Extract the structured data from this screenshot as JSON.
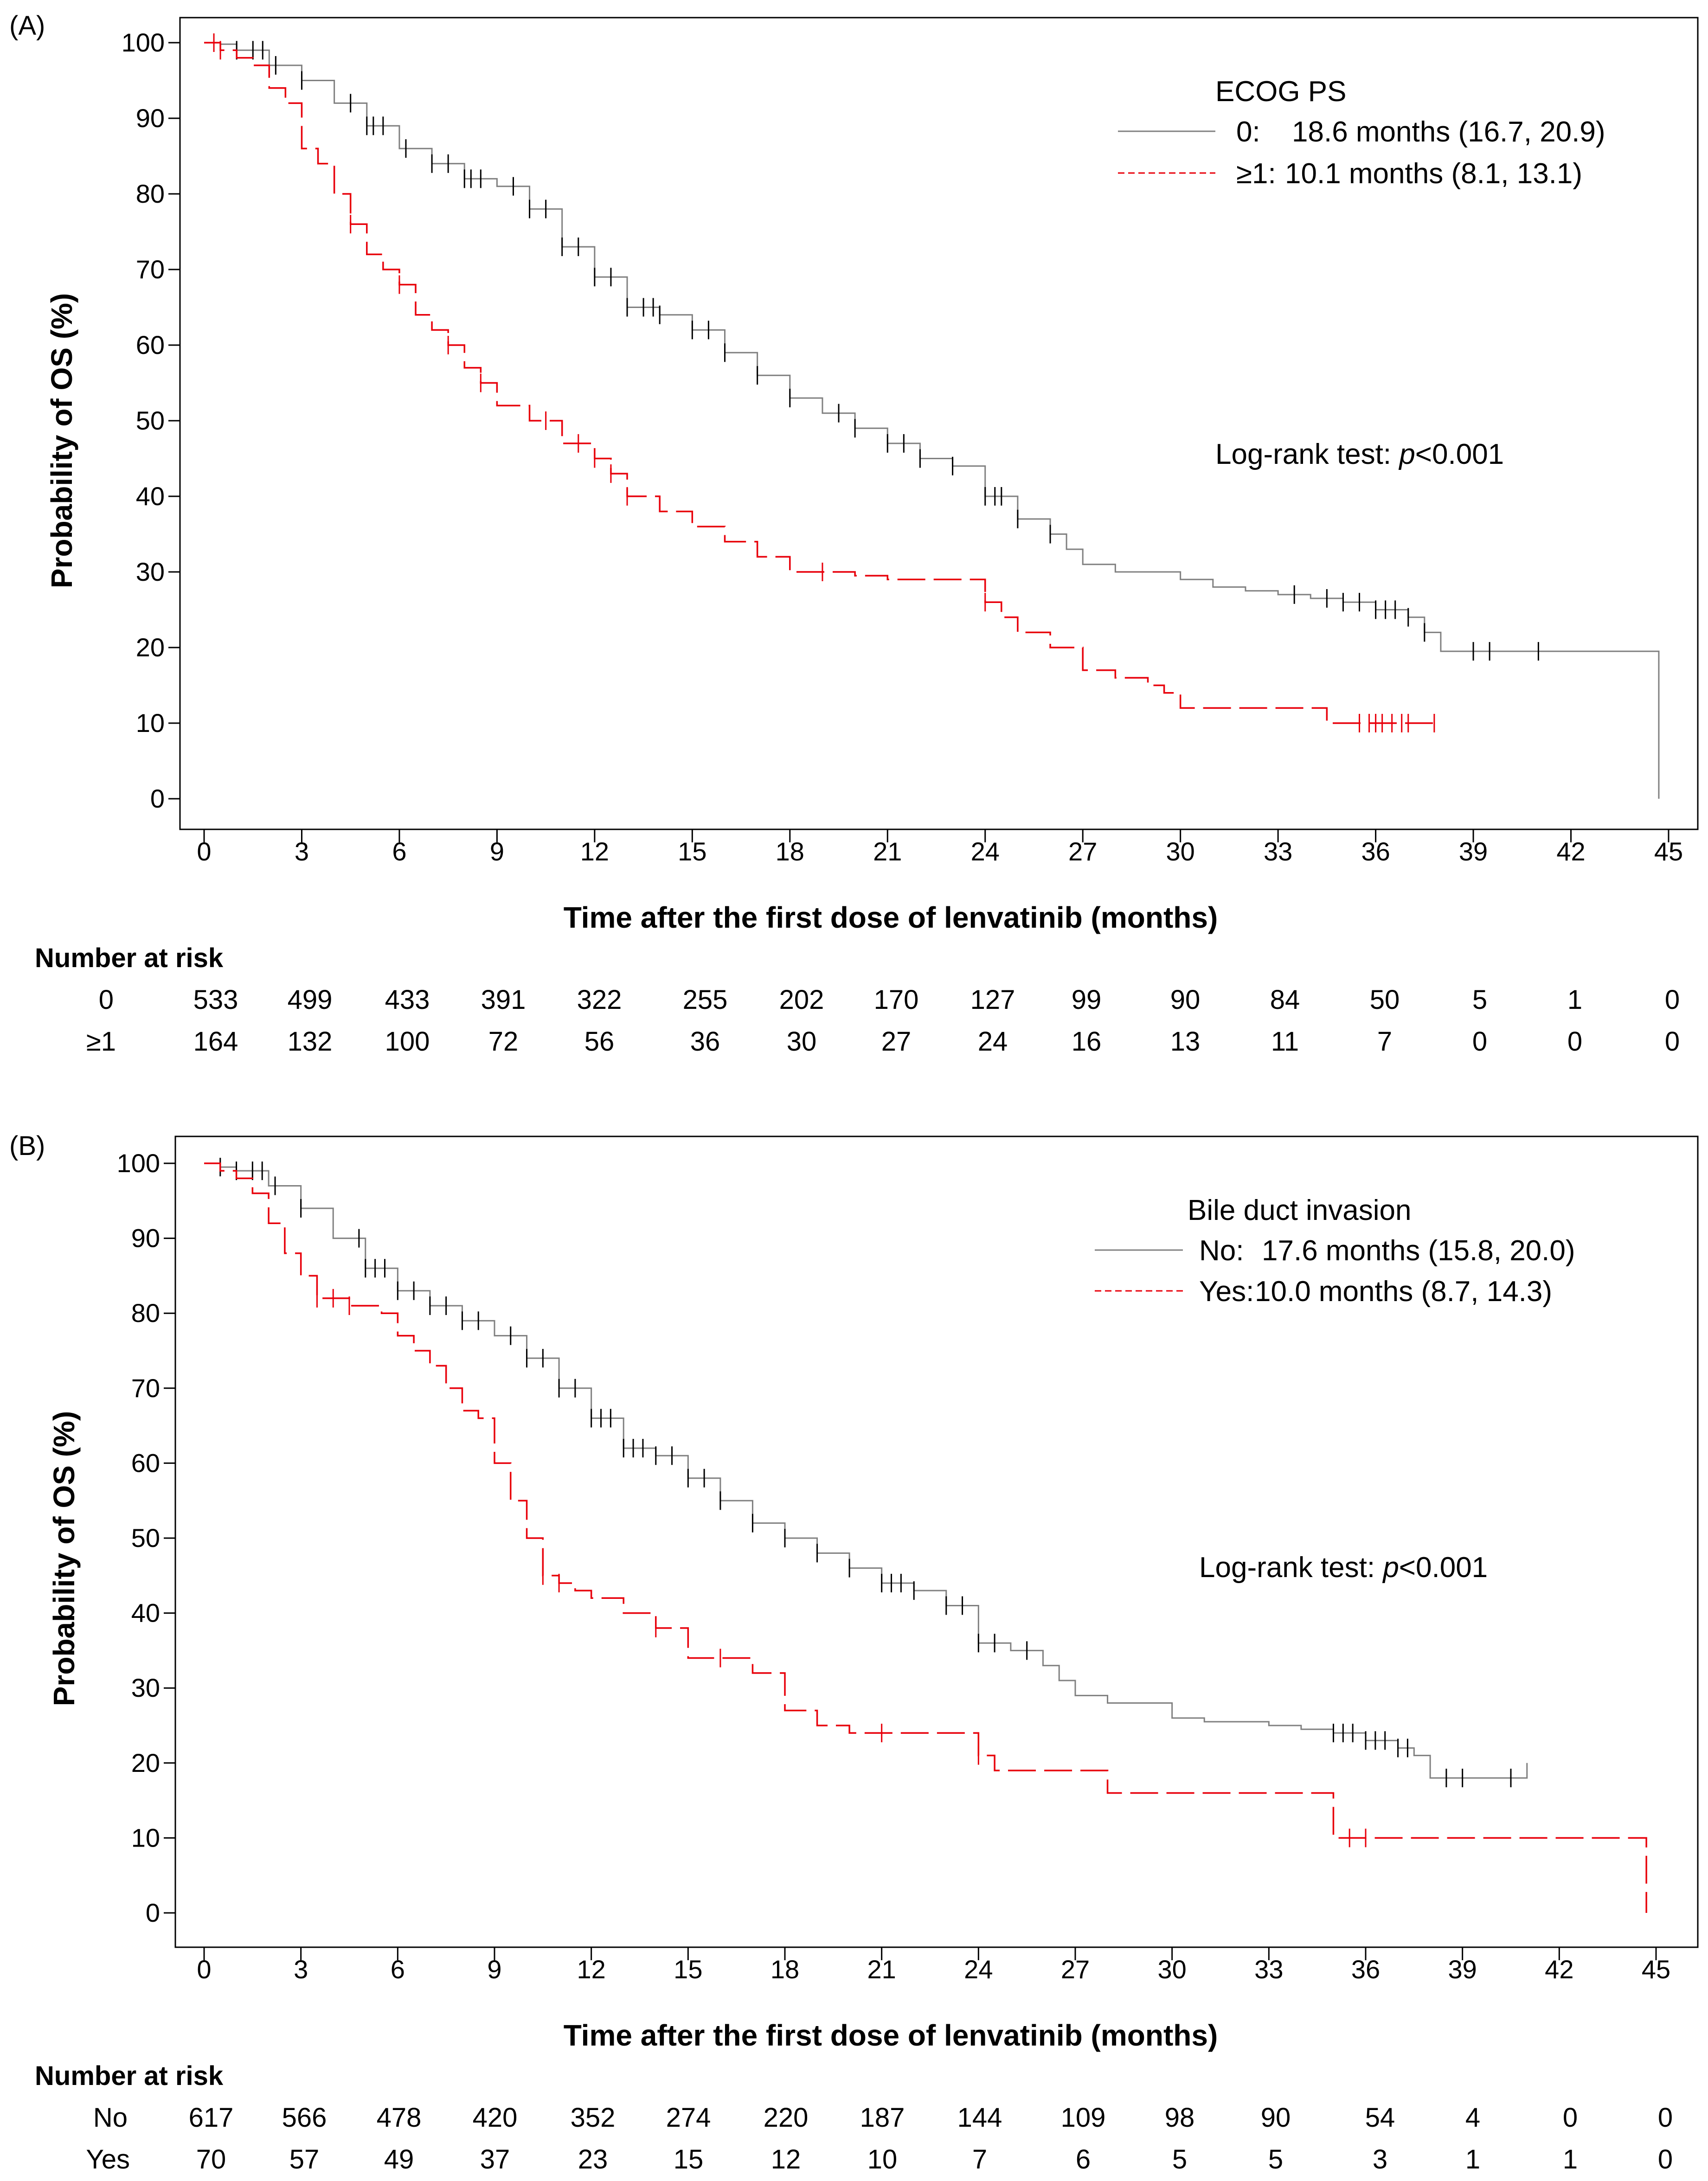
{
  "chart_data": [
    {
      "panel": "(A)",
      "type": "line",
      "subtype": "kaplan-meier",
      "xlabel": "Time after the first dose of lenvatinib (months)",
      "ylabel": "Probability of OS (%)",
      "xlim": [
        0,
        45
      ],
      "ylim": [
        0,
        100
      ],
      "xticks": [
        0,
        3,
        6,
        9,
        12,
        15,
        18,
        21,
        24,
        27,
        30,
        33,
        36,
        39,
        42,
        45
      ],
      "yticks": [
        0,
        10,
        20,
        30,
        40,
        50,
        60,
        70,
        80,
        90,
        100
      ],
      "legend_title": "ECOG PS",
      "legend_position": "top-right",
      "annotation": {
        "prefix": "Log-rank test: ",
        "italic": "p",
        "suffix": "<0.001"
      },
      "series": [
        {
          "name": "0",
          "legend_label": "0:",
          "legend_value": "18.6 months (16.7, 20.9)",
          "color": "#808080",
          "dash": "solid",
          "points": [
            [
              0,
              100
            ],
            [
              0.5,
              99.8
            ],
            [
              1,
              99
            ],
            [
              2,
              97
            ],
            [
              3,
              95
            ],
            [
              4,
              92
            ],
            [
              5,
              89
            ],
            [
              6,
              86
            ],
            [
              7,
              84
            ],
            [
              8,
              82
            ],
            [
              9,
              81
            ],
            [
              10,
              78
            ],
            [
              11,
              73
            ],
            [
              12,
              69
            ],
            [
              13,
              65
            ],
            [
              14,
              64
            ],
            [
              15,
              62
            ],
            [
              16,
              59
            ],
            [
              17,
              56
            ],
            [
              18,
              53
            ],
            [
              19,
              51
            ],
            [
              20,
              49
            ],
            [
              21,
              47
            ],
            [
              22,
              45
            ],
            [
              23,
              44
            ],
            [
              24,
              40
            ],
            [
              25,
              37
            ],
            [
              26,
              35
            ],
            [
              26.5,
              33
            ],
            [
              27,
              31
            ],
            [
              28,
              30
            ],
            [
              29,
              30
            ],
            [
              30,
              29
            ],
            [
              31,
              28
            ],
            [
              32,
              27.5
            ],
            [
              33,
              27
            ],
            [
              34,
              26.5
            ],
            [
              35,
              26
            ],
            [
              36,
              25
            ],
            [
              37,
              24
            ],
            [
              37.5,
              22
            ],
            [
              38,
              19.5
            ],
            [
              44.7,
              19.5
            ],
            [
              44.7,
              0
            ]
          ],
          "censor_times": [
            1,
            1.5,
            1.8,
            2.2,
            3,
            4.5,
            5,
            5.2,
            5.5,
            6.2,
            7,
            7.5,
            8,
            8.2,
            8.5,
            9.5,
            10,
            10.5,
            11,
            11.5,
            12,
            12.5,
            13,
            13.5,
            13.8,
            14,
            15,
            15.5,
            16,
            17,
            18,
            19.5,
            20,
            21,
            21.5,
            22,
            23,
            24,
            24.3,
            24.5,
            25,
            26,
            33.5,
            34.5,
            35,
            35.5,
            36,
            36.3,
            36.6,
            37,
            37.5,
            39,
            39.5,
            41
          ]
        },
        {
          "name": "≥1",
          "legend_label": "≥1:",
          "legend_value": "10.1 months (8.1, 13.1)",
          "color": "#e8000b",
          "dash": "dashed",
          "points": [
            [
              0,
              100
            ],
            [
              0.5,
              99
            ],
            [
              1,
              98
            ],
            [
              1.5,
              97
            ],
            [
              2,
              94
            ],
            [
              2.5,
              92
            ],
            [
              3,
              86
            ],
            [
              3.5,
              84
            ],
            [
              4,
              80
            ],
            [
              4.5,
              76
            ],
            [
              5,
              72
            ],
            [
              5.5,
              70
            ],
            [
              6,
              68
            ],
            [
              6.5,
              64
            ],
            [
              7,
              62
            ],
            [
              7.5,
              60
            ],
            [
              8,
              57
            ],
            [
              8.5,
              55
            ],
            [
              9,
              52
            ],
            [
              10,
              50
            ],
            [
              11,
              47
            ],
            [
              12,
              45
            ],
            [
              12.5,
              43
            ],
            [
              13,
              40
            ],
            [
              14,
              38
            ],
            [
              15,
              36
            ],
            [
              16,
              34
            ],
            [
              17,
              32
            ],
            [
              18,
              30
            ],
            [
              19,
              30
            ],
            [
              20,
              29.5
            ],
            [
              21,
              29
            ],
            [
              23,
              29
            ],
            [
              24,
              26
            ],
            [
              24.5,
              24
            ],
            [
              25,
              22
            ],
            [
              26,
              20
            ],
            [
              27,
              17
            ],
            [
              28,
              16
            ],
            [
              29,
              15
            ],
            [
              29.5,
              14
            ],
            [
              30,
              12
            ],
            [
              31,
              12
            ],
            [
              34,
              12
            ],
            [
              34.5,
              10
            ],
            [
              37.8,
              10
            ]
          ],
          "censor_times": [
            0.3,
            0.5,
            4.5,
            6,
            7.5,
            8.5,
            10.5,
            11.5,
            12,
            12.5,
            13,
            19,
            24,
            35.5,
            35.8,
            36,
            36.2,
            36.5,
            36.8,
            37,
            37.8
          ]
        }
      ],
      "risk_table": {
        "title": "Number at risk",
        "rows": [
          {
            "label": "0",
            "values": [
              533,
              499,
              433,
              391,
              322,
              255,
              202,
              170,
              127,
              99,
              90,
              84,
              50,
              5,
              1,
              0
            ]
          },
          {
            "label": "≥1",
            "values": [
              164,
              132,
              100,
              72,
              56,
              36,
              30,
              27,
              24,
              16,
              13,
              11,
              7,
              0,
              0,
              0
            ]
          }
        ]
      }
    },
    {
      "panel": "(B)",
      "type": "line",
      "subtype": "kaplan-meier",
      "xlabel": "Time after the first dose of lenvatinib (months)",
      "ylabel": "Probability of OS (%)",
      "xlim": [
        0,
        45
      ],
      "ylim": [
        0,
        100
      ],
      "xticks": [
        0,
        3,
        6,
        9,
        12,
        15,
        18,
        21,
        24,
        27,
        30,
        33,
        36,
        39,
        42,
        45
      ],
      "yticks": [
        0,
        10,
        20,
        30,
        40,
        50,
        60,
        70,
        80,
        90,
        100
      ],
      "legend_title": "Bile duct invasion",
      "legend_position": "top-right",
      "annotation": {
        "prefix": "Log-rank test: ",
        "italic": "p",
        "suffix": "<0.001"
      },
      "series": [
        {
          "name": "No",
          "legend_label": "No:",
          "legend_value": "17.6 months (15.8, 20.0)",
          "color": "#808080",
          "dash": "solid",
          "points": [
            [
              0,
              100
            ],
            [
              0.5,
              99.5
            ],
            [
              1,
              99
            ],
            [
              2,
              97
            ],
            [
              3,
              94
            ],
            [
              4,
              90
            ],
            [
              5,
              86
            ],
            [
              6,
              83
            ],
            [
              7,
              81
            ],
            [
              8,
              79
            ],
            [
              9,
              77
            ],
            [
              10,
              74
            ],
            [
              11,
              70
            ],
            [
              12,
              66
            ],
            [
              13,
              62
            ],
            [
              14,
              61
            ],
            [
              15,
              58
            ],
            [
              16,
              55
            ],
            [
              17,
              52
            ],
            [
              18,
              50
            ],
            [
              19,
              48
            ],
            [
              20,
              46
            ],
            [
              21,
              44
            ],
            [
              22,
              43
            ],
            [
              23,
              41
            ],
            [
              24,
              36
            ],
            [
              25,
              35
            ],
            [
              26,
              33
            ],
            [
              26.5,
              31
            ],
            [
              27,
              29
            ],
            [
              28,
              28
            ],
            [
              29,
              28
            ],
            [
              30,
              26
            ],
            [
              31,
              25.5
            ],
            [
              33,
              25
            ],
            [
              34,
              24.5
            ],
            [
              35,
              24
            ],
            [
              36,
              23
            ],
            [
              37,
              22
            ],
            [
              37.5,
              21
            ],
            [
              38,
              18
            ],
            [
              41,
              18
            ],
            [
              41,
              20
            ]
          ],
          "censor_times": [
            0.5,
            1,
            1.5,
            1.8,
            2.2,
            3,
            4.8,
            5,
            5.3,
            5.6,
            6,
            6.5,
            7,
            7.5,
            8,
            8.5,
            9.5,
            10,
            10.5,
            11,
            11.5,
            12,
            12.3,
            12.6,
            13,
            13.3,
            13.6,
            14,
            14.5,
            15,
            15.5,
            16,
            17,
            18,
            19,
            20,
            21,
            21.3,
            21.6,
            22,
            23,
            23.5,
            24,
            24.5,
            25.5,
            35,
            35.3,
            35.6,
            36,
            36.3,
            36.6,
            37,
            37.3,
            38.5,
            39,
            40.5
          ]
        },
        {
          "name": "Yes",
          "legend_label": "Yes:",
          "legend_value": "10.0 months (8.7, 14.3)",
          "color": "#e8000b",
          "dash": "dashed",
          "points": [
            [
              0,
              100
            ],
            [
              0.5,
              99
            ],
            [
              1,
              98
            ],
            [
              1.5,
              96
            ],
            [
              2,
              92
            ],
            [
              2.5,
              88
            ],
            [
              3,
              85
            ],
            [
              3.5,
              82
            ],
            [
              4.5,
              81
            ],
            [
              5.5,
              80
            ],
            [
              6,
              77
            ],
            [
              6.5,
              75
            ],
            [
              7,
              73
            ],
            [
              7.5,
              70
            ],
            [
              8,
              67
            ],
            [
              8.5,
              66
            ],
            [
              9,
              60
            ],
            [
              9.5,
              55
            ],
            [
              10,
              50
            ],
            [
              10.5,
              45
            ],
            [
              11,
              44
            ],
            [
              11.5,
              43
            ],
            [
              12,
              42
            ],
            [
              13,
              40
            ],
            [
              14,
              38
            ],
            [
              15,
              34
            ],
            [
              16,
              34
            ],
            [
              17,
              32
            ],
            [
              18,
              27
            ],
            [
              19,
              25
            ],
            [
              20,
              24
            ],
            [
              23,
              24
            ],
            [
              24,
              21
            ],
            [
              24.5,
              19
            ],
            [
              27,
              19
            ],
            [
              28,
              16
            ],
            [
              30,
              16
            ],
            [
              34,
              16
            ],
            [
              35,
              10
            ],
            [
              44.7,
              10
            ],
            [
              44.7,
              0
            ]
          ],
          "censor_times": [
            3.5,
            4,
            4.5,
            10.5,
            11,
            14,
            16,
            21,
            24,
            35.5,
            36
          ]
        }
      ],
      "risk_table": {
        "title": "Number at risk",
        "rows": [
          {
            "label": "No",
            "values": [
              617,
              566,
              478,
              420,
              352,
              274,
              220,
              187,
              144,
              109,
              98,
              90,
              54,
              4,
              0,
              0
            ]
          },
          {
            "label": "Yes",
            "values": [
              70,
              57,
              49,
              37,
              23,
              15,
              12,
              10,
              7,
              6,
              5,
              5,
              3,
              1,
              1,
              0
            ]
          }
        ]
      }
    }
  ]
}
